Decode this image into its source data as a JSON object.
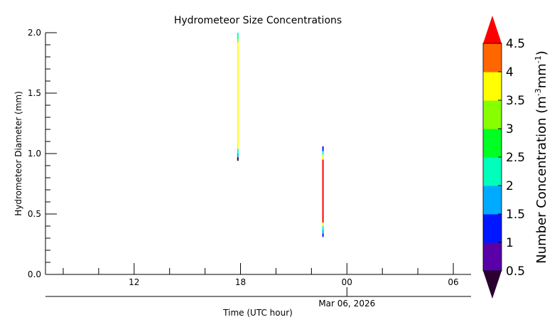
{
  "chart_data": {
    "type": "heatmap",
    "title": "Hydrometeor Size Concentrations",
    "xlabel": "Time (UTC hour)",
    "ylabel": "Hydrometeor Diameter (mm)",
    "date_label": "Mar 06, 2026",
    "x_range_hours": [
      7,
      31
    ],
    "x_ticks": [
      {
        "hour": 12,
        "label": "12"
      },
      {
        "hour": 18,
        "label": "18"
      },
      {
        "hour": 24,
        "label": "00"
      },
      {
        "hour": 30,
        "label": "06"
      }
    ],
    "ylim": [
      0,
      2.0
    ],
    "y_ticks": [
      {
        "value": 0,
        "label": "0.0"
      },
      {
        "value": 0.5,
        "label": "0.5"
      },
      {
        "value": 1.0,
        "label": "1.0"
      },
      {
        "value": 1.5,
        "label": "1.5"
      },
      {
        "value": 2.0,
        "label": "2.0"
      }
    ],
    "colorbar": {
      "label_main": "Number Concentration (m",
      "label_sup1": "-3",
      "label_mid": "mm",
      "label_sup2": "-1",
      "label_end": ")",
      "levels": [
        0.5,
        1,
        1.5,
        2,
        2.5,
        3,
        3.5,
        4,
        4.5
      ],
      "tick_labels": [
        "0.5",
        "1",
        "1.5",
        "2",
        "2.5",
        "3",
        "3.5",
        "4",
        "4.5"
      ],
      "under_color": "#2a0030",
      "over_color": "#ff0000",
      "colors": [
        "#5a00a8",
        "#0018ff",
        "#00aaff",
        "#00ffbb",
        "#00ff22",
        "#88ff00",
        "#ffff00",
        "#ff6600"
      ]
    },
    "columns": [
      {
        "hour": 17.85,
        "segments": [
          {
            "y0": 0.94,
            "y1": 0.97,
            "color": "#2a0030"
          },
          {
            "y0": 0.97,
            "y1": 1.0,
            "color": "#00aaff"
          },
          {
            "y0": 1.0,
            "y1": 1.04,
            "color": "#00ffbb"
          },
          {
            "y0": 1.04,
            "y1": 1.92,
            "color": "#ffff00"
          },
          {
            "y0": 1.92,
            "y1": 1.95,
            "color": "#88ff00"
          },
          {
            "y0": 1.95,
            "y1": 2.0,
            "color": "#00ffbb"
          }
        ]
      },
      {
        "hour": 22.65,
        "segments": [
          {
            "y0": 0.31,
            "y1": 0.34,
            "color": "#0018ff"
          },
          {
            "y0": 0.34,
            "y1": 0.37,
            "color": "#00aaff"
          },
          {
            "y0": 0.37,
            "y1": 0.4,
            "color": "#00ffbb"
          },
          {
            "y0": 0.4,
            "y1": 0.43,
            "color": "#ffff00"
          },
          {
            "y0": 0.43,
            "y1": 0.95,
            "color": "#ff0000"
          },
          {
            "y0": 0.95,
            "y1": 0.99,
            "color": "#ffff00"
          },
          {
            "y0": 0.99,
            "y1": 1.02,
            "color": "#00ffbb"
          },
          {
            "y0": 1.02,
            "y1": 1.06,
            "color": "#0018ff"
          }
        ]
      }
    ]
  }
}
